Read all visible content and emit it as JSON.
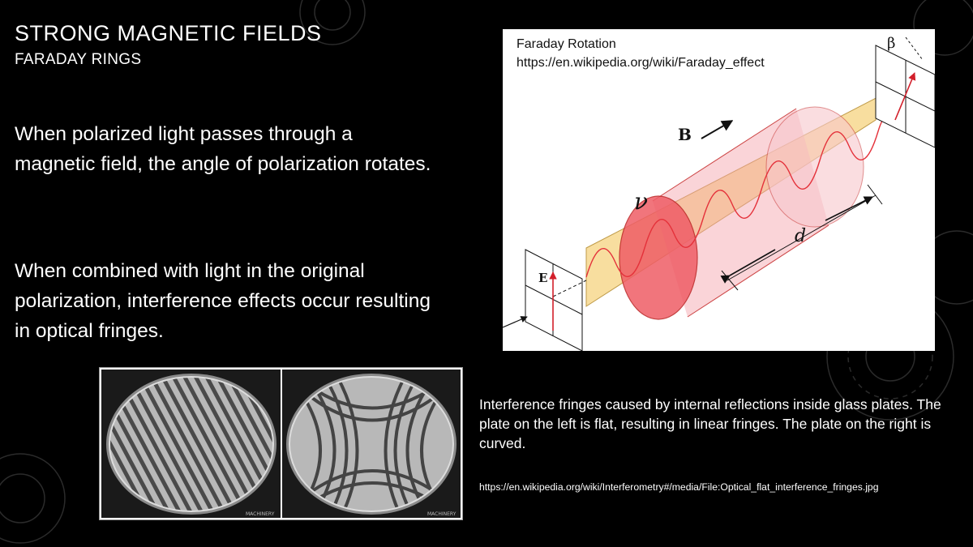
{
  "slide": {
    "title": "STRONG MAGNETIC FIELDS",
    "subtitle": "FARADAY RINGS",
    "paragraph_1": "When polarized light passes through a magnetic field, the angle of polarization rotates.",
    "paragraph_2": "When combined with light in the original polarization, interference effects occur resulting in optical fringes."
  },
  "diagram": {
    "caption_title": "Faraday Rotation",
    "caption_url": "https://en.wikipedia.org/wiki/Faraday_effect",
    "labels": {
      "field": "B",
      "frequency": "ν",
      "length": "d",
      "electric": "E",
      "angle": "β"
    }
  },
  "fringes": {
    "watermark_left": "MACHINERY",
    "watermark_right": "MACHINERY",
    "caption": "Interference fringes caused by internal reflections inside glass plates.  The plate on the left is flat, resulting in linear fringes.  The plate on the right is curved.",
    "source_url": "https://en.wikipedia.org/wiki/Interferometry#/media/File:Optical_flat_interference_fringes.jpg"
  },
  "colors": {
    "background": "#000000",
    "text": "#ffffff",
    "cylinder": "#f4a0a8",
    "wave": "#e4313a",
    "beam": "#f7d98f"
  }
}
